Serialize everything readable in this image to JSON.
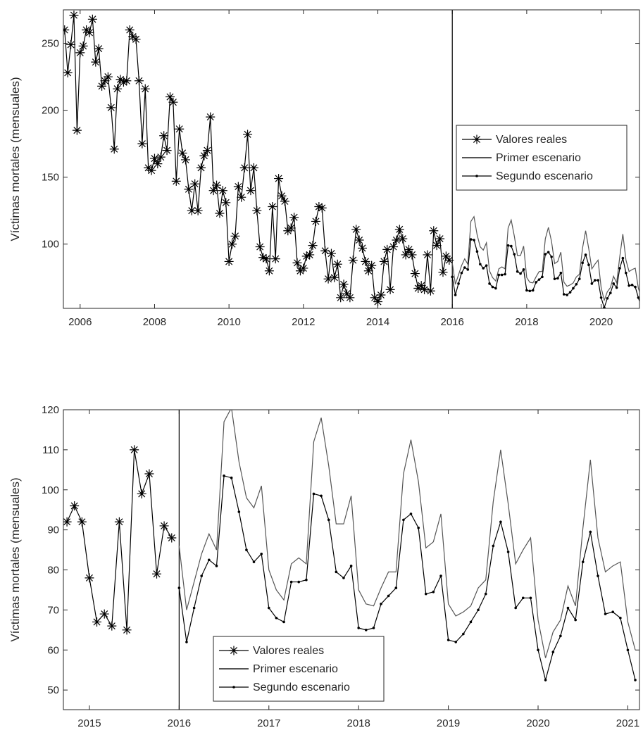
{
  "chart_data": [
    {
      "type": "line",
      "y_label": "Víctimas mortales (mensuales)",
      "xlim": [
        2005.55,
        2021.03
      ],
      "xticks": [
        2006,
        2008,
        2010,
        2012,
        2014,
        2016,
        2018,
        2020
      ],
      "ylim": [
        52,
        275
      ],
      "yticks": [
        100,
        150,
        200,
        250
      ],
      "vline": 2016,
      "legend": "east",
      "series": [
        {
          "name": "Valores reales",
          "color": "#000000",
          "marker": "star",
          "x": [
            2005.583,
            2005.667,
            2005.75,
            2005.833,
            2005.917,
            2006,
            2006.083,
            2006.167,
            2006.25,
            2006.333,
            2006.417,
            2006.5,
            2006.583,
            2006.667,
            2006.75,
            2006.833,
            2006.917,
            2007,
            2007.083,
            2007.167,
            2007.25,
            2007.333,
            2007.417,
            2007.5,
            2007.583,
            2007.667,
            2007.75,
            2007.833,
            2007.917,
            2008,
            2008.083,
            2008.167,
            2008.25,
            2008.333,
            2008.417,
            2008.5,
            2008.583,
            2008.667,
            2008.75,
            2008.833,
            2008.917,
            2009,
            2009.083,
            2009.167,
            2009.25,
            2009.333,
            2009.417,
            2009.5,
            2009.583,
            2009.667,
            2009.75,
            2009.833,
            2009.917,
            2010,
            2010.083,
            2010.167,
            2010.25,
            2010.333,
            2010.417,
            2010.5,
            2010.583,
            2010.667,
            2010.75,
            2010.833,
            2010.917,
            2011,
            2011.083,
            2011.167,
            2011.25,
            2011.333,
            2011.417,
            2011.5,
            2011.583,
            2011.667,
            2011.75,
            2011.833,
            2011.917,
            2012,
            2012.083,
            2012.167,
            2012.25,
            2012.333,
            2012.417,
            2012.5,
            2012.583,
            2012.667,
            2012.75,
            2012.833,
            2012.917,
            2013,
            2013.083,
            2013.167,
            2013.25,
            2013.333,
            2013.417,
            2013.5,
            2013.583,
            2013.667,
            2013.75,
            2013.833,
            2013.917,
            2014,
            2014.083,
            2014.167,
            2014.25,
            2014.333,
            2014.417,
            2014.5,
            2014.583,
            2014.667,
            2014.75,
            2014.833,
            2014.917,
            2015,
            2015.083,
            2015.167,
            2015.25,
            2015.333,
            2015.417,
            2015.5,
            2015.583,
            2015.667,
            2015.75,
            2015.833,
            2015.917
          ],
          "values": [
            260,
            228,
            249,
            271,
            185,
            243,
            248,
            260,
            258,
            268,
            236,
            246,
            218,
            222,
            225,
            202,
            171,
            216,
            223,
            221,
            222,
            260,
            255,
            253,
            222,
            175,
            216,
            157,
            155,
            164,
            160,
            165,
            181,
            170,
            210,
            206,
            147,
            186,
            168,
            163,
            141,
            125,
            145,
            125,
            157,
            166,
            170,
            195,
            140,
            144,
            123,
            140,
            131,
            87,
            100,
            106,
            143,
            135,
            157,
            182,
            140,
            157,
            125,
            98,
            90,
            89,
            80,
            128,
            89,
            149,
            136,
            132,
            110,
            112,
            120,
            86,
            80,
            82,
            91,
            92,
            99,
            117,
            128,
            127,
            95,
            74,
            93,
            75,
            85,
            60,
            70,
            63,
            60,
            88,
            111,
            103,
            97,
            87,
            80,
            84,
            60,
            57,
            62,
            87,
            96,
            66,
            98,
            103,
            111,
            104,
            92,
            96,
            92,
            78,
            67,
            69,
            66,
            92,
            65,
            110,
            99,
            104,
            79,
            91,
            88
          ]
        },
        {
          "name": "Primer escenario",
          "color": "#555555",
          "marker": "none",
          "x": [
            2016,
            2016.083,
            2016.167,
            2016.25,
            2016.333,
            2016.417,
            2016.5,
            2016.583,
            2016.667,
            2016.75,
            2016.833,
            2016.917,
            2017,
            2017.083,
            2017.167,
            2017.25,
            2017.333,
            2017.417,
            2017.5,
            2017.583,
            2017.667,
            2017.75,
            2017.833,
            2017.917,
            2018,
            2018.083,
            2018.167,
            2018.25,
            2018.333,
            2018.417,
            2018.5,
            2018.583,
            2018.667,
            2018.75,
            2018.833,
            2018.917,
            2019,
            2019.083,
            2019.167,
            2019.25,
            2019.333,
            2019.417,
            2019.5,
            2019.583,
            2019.667,
            2019.75,
            2019.833,
            2019.917,
            2020,
            2020.083,
            2020.167,
            2020.25,
            2020.333,
            2020.417,
            2020.5,
            2020.583,
            2020.667,
            2020.75,
            2020.833,
            2020.917,
            2021,
            2021.083
          ],
          "values": [
            86,
            70,
            77,
            84,
            89,
            85,
            117,
            120.5,
            107,
            98,
            95.5,
            101,
            80,
            75,
            72.5,
            81.5,
            83,
            81.5,
            112,
            118,
            106,
            91.5,
            91.5,
            98.5,
            75,
            71.5,
            71,
            75.5,
            79.5,
            79.5,
            104,
            112.5,
            102,
            85.5,
            87,
            94,
            71.5,
            68.5,
            69.5,
            71,
            75.5,
            77.5,
            97,
            110,
            96.5,
            81.5,
            85,
            88,
            67.5,
            58,
            64.5,
            67.5,
            76,
            71,
            90.5,
            107.5,
            88,
            79.5,
            81,
            82,
            67,
            60
          ]
        },
        {
          "name": "Segundo escenario",
          "color": "#000000",
          "marker": "dot",
          "x": [
            2016,
            2016.083,
            2016.167,
            2016.25,
            2016.333,
            2016.417,
            2016.5,
            2016.583,
            2016.667,
            2016.75,
            2016.833,
            2016.917,
            2017,
            2017.083,
            2017.167,
            2017.25,
            2017.333,
            2017.417,
            2017.5,
            2017.583,
            2017.667,
            2017.75,
            2017.833,
            2017.917,
            2018,
            2018.083,
            2018.167,
            2018.25,
            2018.333,
            2018.417,
            2018.5,
            2018.583,
            2018.667,
            2018.75,
            2018.833,
            2018.917,
            2019,
            2019.083,
            2019.167,
            2019.25,
            2019.333,
            2019.417,
            2019.5,
            2019.583,
            2019.667,
            2019.75,
            2019.833,
            2019.917,
            2020,
            2020.083,
            2020.167,
            2020.25,
            2020.333,
            2020.417,
            2020.5,
            2020.583,
            2020.667,
            2020.75,
            2020.833,
            2020.917,
            2021,
            2021.083
          ],
          "values": [
            75.5,
            62,
            70.5,
            78.5,
            82.5,
            81,
            103.5,
            103,
            94.5,
            85,
            82,
            84,
            70.5,
            68,
            67,
            77,
            77,
            77.5,
            99,
            98.5,
            92.5,
            79.5,
            78,
            81,
            65.5,
            65,
            65.5,
            71.5,
            73.5,
            75.5,
            92.5,
            94,
            90.5,
            74,
            74.5,
            78.5,
            62.5,
            62,
            64,
            67,
            70,
            74,
            86,
            92,
            84.5,
            70.5,
            73,
            73,
            60,
            52.5,
            59.5,
            63.5,
            70.5,
            67.5,
            82,
            89.5,
            78.5,
            69,
            69.5,
            68,
            60,
            52.5
          ]
        }
      ]
    },
    {
      "type": "line",
      "y_label": "Víctimas mortales (mensuales)",
      "xlim": [
        2014.71,
        2021.13
      ],
      "xticks": [
        2015,
        2016,
        2017,
        2018,
        2019,
        2020,
        2021
      ],
      "ylim": [
        45.1,
        120
      ],
      "yticks": [
        50,
        60,
        70,
        80,
        90,
        100,
        110,
        120
      ],
      "vline": 2016,
      "legend": "south",
      "series": [
        {
          "name": "Valores reales",
          "color": "#000000",
          "marker": "star",
          "x": [
            2014.75,
            2014.833,
            2014.917,
            2015,
            2015.083,
            2015.167,
            2015.25,
            2015.333,
            2015.417,
            2015.5,
            2015.583,
            2015.667,
            2015.75,
            2015.833,
            2015.917
          ],
          "values": [
            92,
            96,
            92,
            78,
            67,
            69,
            66,
            92,
            65,
            110,
            99,
            104,
            79,
            91,
            88
          ]
        },
        {
          "name": "Primer escenario",
          "color": "#555555",
          "marker": "none",
          "x": [
            2016,
            2016.083,
            2016.167,
            2016.25,
            2016.333,
            2016.417,
            2016.5,
            2016.583,
            2016.667,
            2016.75,
            2016.833,
            2016.917,
            2017,
            2017.083,
            2017.167,
            2017.25,
            2017.333,
            2017.417,
            2017.5,
            2017.583,
            2017.667,
            2017.75,
            2017.833,
            2017.917,
            2018,
            2018.083,
            2018.167,
            2018.25,
            2018.333,
            2018.417,
            2018.5,
            2018.583,
            2018.667,
            2018.75,
            2018.833,
            2018.917,
            2019,
            2019.083,
            2019.167,
            2019.25,
            2019.333,
            2019.417,
            2019.5,
            2019.583,
            2019.667,
            2019.75,
            2019.833,
            2019.917,
            2020,
            2020.083,
            2020.167,
            2020.25,
            2020.333,
            2020.417,
            2020.5,
            2020.583,
            2020.667,
            2020.75,
            2020.833,
            2020.917,
            2021,
            2021.083
          ],
          "values": [
            86,
            70,
            77,
            84,
            89,
            85,
            117,
            120.5,
            107,
            98,
            95.5,
            101,
            80,
            75,
            72.5,
            81.5,
            83,
            81.5,
            112,
            118,
            106,
            91.5,
            91.5,
            98.5,
            75,
            71.5,
            71,
            75.5,
            79.5,
            79.5,
            104,
            112.5,
            102,
            85.5,
            87,
            94,
            71.5,
            68.5,
            69.5,
            71,
            75.5,
            77.5,
            97,
            110,
            96.5,
            81.5,
            85,
            88,
            67.5,
            58,
            64.5,
            67.5,
            76,
            71,
            90.5,
            107.5,
            88,
            79.5,
            81,
            82,
            67,
            60
          ]
        },
        {
          "name": "Segundo escenario",
          "color": "#000000",
          "marker": "dot",
          "x": [
            2016,
            2016.083,
            2016.167,
            2016.25,
            2016.333,
            2016.417,
            2016.5,
            2016.583,
            2016.667,
            2016.75,
            2016.833,
            2016.917,
            2017,
            2017.083,
            2017.167,
            2017.25,
            2017.333,
            2017.417,
            2017.5,
            2017.583,
            2017.667,
            2017.75,
            2017.833,
            2017.917,
            2018,
            2018.083,
            2018.167,
            2018.25,
            2018.333,
            2018.417,
            2018.5,
            2018.583,
            2018.667,
            2018.75,
            2018.833,
            2018.917,
            2019,
            2019.083,
            2019.167,
            2019.25,
            2019.333,
            2019.417,
            2019.5,
            2019.583,
            2019.667,
            2019.75,
            2019.833,
            2019.917,
            2020,
            2020.083,
            2020.167,
            2020.25,
            2020.333,
            2020.417,
            2020.5,
            2020.583,
            2020.667,
            2020.75,
            2020.833,
            2020.917,
            2021,
            2021.083
          ],
          "values": [
            75.5,
            62,
            70.5,
            78.5,
            82.5,
            81,
            103.5,
            103,
            94.5,
            85,
            82,
            84,
            70.5,
            68,
            67,
            77,
            77,
            77.5,
            99,
            98.5,
            92.5,
            79.5,
            78,
            81,
            65.5,
            65,
            65.5,
            71.5,
            73.5,
            75.5,
            92.5,
            94,
            90.5,
            74,
            74.5,
            78.5,
            62.5,
            62,
            64,
            67,
            70,
            74,
            86,
            92,
            84.5,
            70.5,
            73,
            73,
            60,
            52.5,
            59.5,
            63.5,
            70.5,
            67.5,
            82,
            89.5,
            78.5,
            69,
            69.5,
            68,
            60,
            52.5
          ]
        }
      ]
    }
  ]
}
